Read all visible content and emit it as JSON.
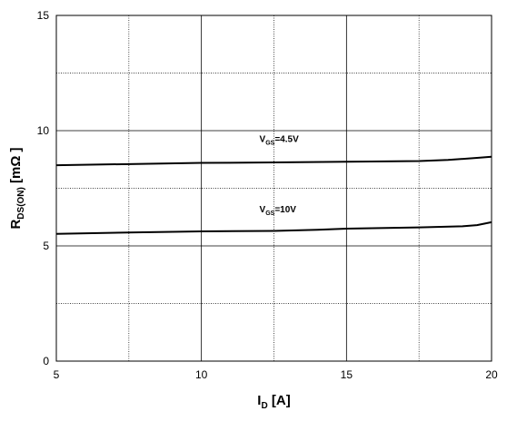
{
  "chart_data": {
    "type": "line",
    "xlim": [
      5,
      20
    ],
    "ylim": [
      0,
      15
    ],
    "x_ticks": [
      "5",
      "10",
      "15",
      "20"
    ],
    "y_ticks": [
      "0",
      "5",
      "10",
      "15"
    ],
    "grid": true,
    "xlabel": {
      "main": "I",
      "sub": "D",
      "unit": " [A]"
    },
    "ylabel": {
      "main": "R",
      "sub": "DS(ON)",
      "unit": " [mΩ ]"
    },
    "series": [
      {
        "label": {
          "main": "V",
          "sub": "GS",
          "value": "=4.5V"
        },
        "x": [
          5,
          7.5,
          10,
          12.5,
          15,
          17.5,
          18.5,
          19.5,
          20
        ],
        "y": [
          8.5,
          8.55,
          8.6,
          8.62,
          8.65,
          8.68,
          8.73,
          8.82,
          8.87
        ]
      },
      {
        "label": {
          "main": "V",
          "sub": "GS",
          "value": "=10V"
        },
        "x": [
          5,
          7.5,
          10,
          12.5,
          14,
          15,
          17.5,
          19,
          19.5,
          20
        ],
        "y": [
          5.52,
          5.58,
          5.63,
          5.65,
          5.7,
          5.75,
          5.8,
          5.85,
          5.9,
          6.03
        ]
      }
    ]
  }
}
